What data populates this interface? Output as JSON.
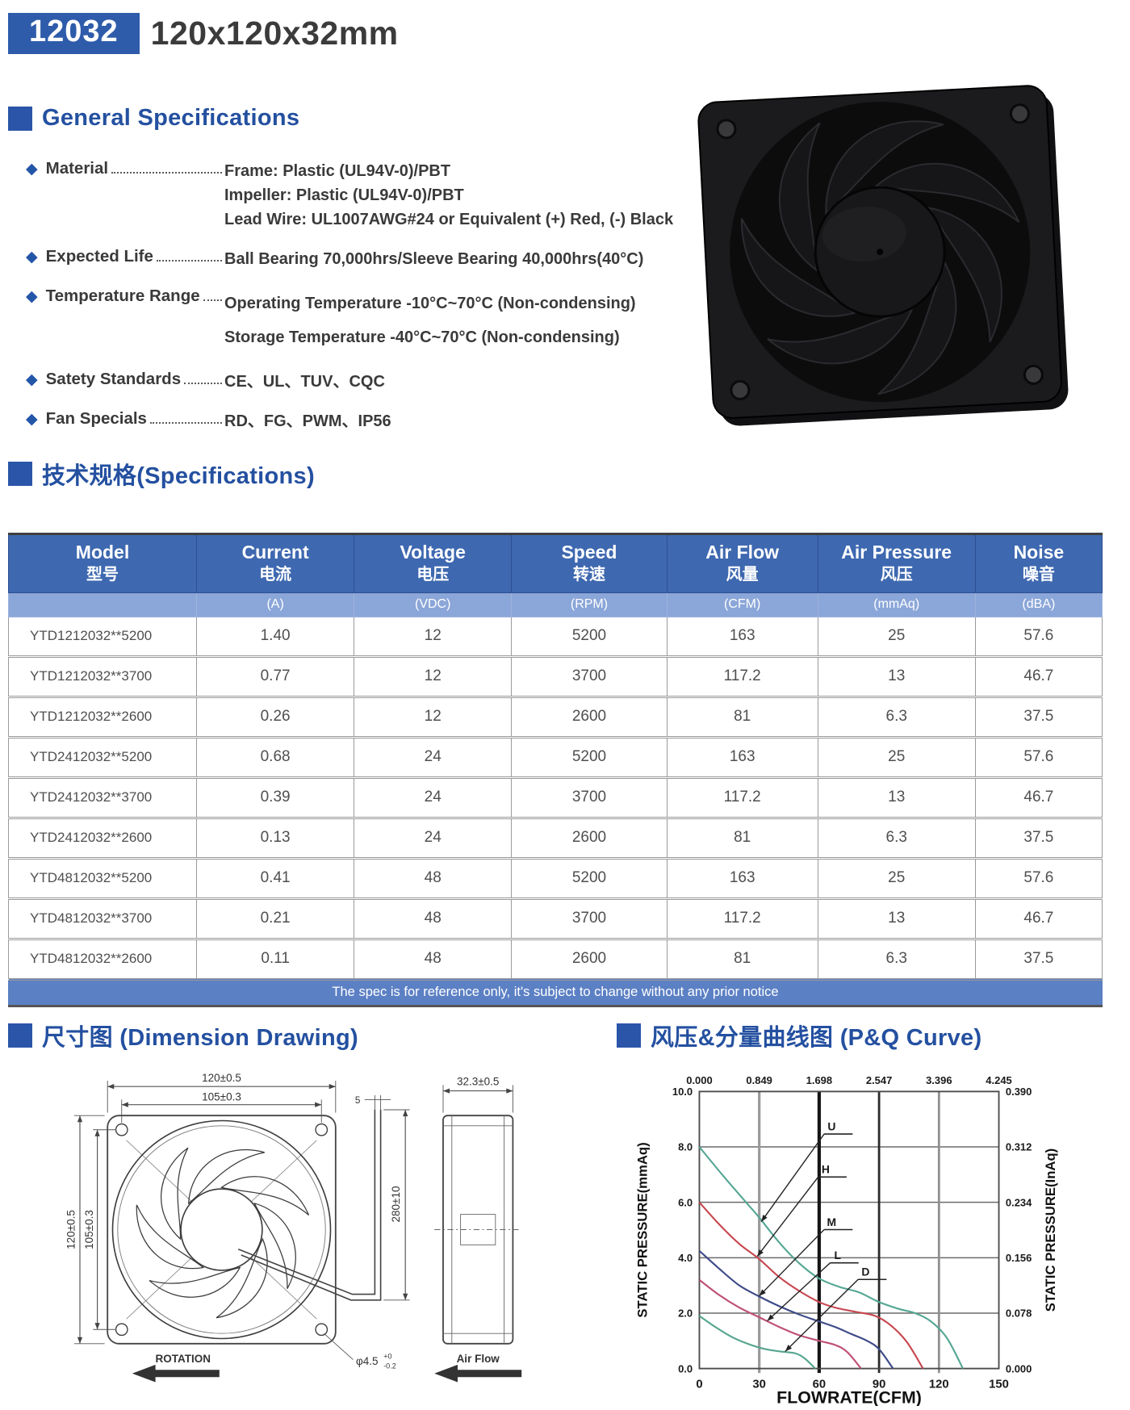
{
  "header": {
    "model_code": "12032",
    "size_label": "120x120x32mm"
  },
  "general": {
    "title": "General Specifications",
    "items": [
      {
        "label": "Material",
        "values": [
          "Frame: Plastic (UL94V-0)/PBT",
          "Impeller: Plastic (UL94V-0)/PBT",
          "Lead Wire: UL1007AWG#24 or Equivalent (+) Red, (-) Black"
        ]
      },
      {
        "label": "Expected Life",
        "values": [
          "Ball Bearing 70,000hrs/Sleeve Bearing 40,000hrs(40°C)"
        ]
      },
      {
        "label": "Temperature Range",
        "values": [
          "Operating Temperature -10°C~70°C (Non-condensing)",
          "Storage Temperature -40°C~70°C (Non-condensing)"
        ],
        "wide": true
      },
      {
        "label": "Satety Standards",
        "values": [
          "CE、UL、TUV、CQC"
        ]
      },
      {
        "label": "Fan Specials",
        "values": [
          "RD、FG、PWM、IP56"
        ]
      }
    ]
  },
  "specs": {
    "title": "技术规格(Specifications)",
    "columns": [
      {
        "en": "Model",
        "zh": "型号",
        "unit": ""
      },
      {
        "en": "Current",
        "zh": "电流",
        "unit": "(A)"
      },
      {
        "en": "Voltage",
        "zh": "电压",
        "unit": "(VDC)"
      },
      {
        "en": "Speed",
        "zh": "转速",
        "unit": "(RPM)"
      },
      {
        "en": "Air Flow",
        "zh": "风量",
        "unit": "(CFM)"
      },
      {
        "en": "Air Pressure",
        "zh": "风压",
        "unit": "(mmAq)"
      },
      {
        "en": "Noise",
        "zh": "噪音",
        "unit": "(dBA)"
      }
    ],
    "rows": [
      [
        "YTD1212032**5200",
        "1.40",
        "12",
        "5200",
        "163",
        "25",
        "57.6"
      ],
      [
        "YTD1212032**3700",
        "0.77",
        "12",
        "3700",
        "117.2",
        "13",
        "46.7"
      ],
      [
        "YTD1212032**2600",
        "0.26",
        "12",
        "2600",
        "81",
        "6.3",
        "37.5"
      ],
      [
        "YTD2412032**5200",
        "0.68",
        "24",
        "5200",
        "163",
        "25",
        "57.6"
      ],
      [
        "YTD2412032**3700",
        "0.39",
        "24",
        "3700",
        "117.2",
        "13",
        "46.7"
      ],
      [
        "YTD2412032**2600",
        "0.13",
        "24",
        "2600",
        "81",
        "6.3",
        "37.5"
      ],
      [
        "YTD4812032**5200",
        "0.41",
        "48",
        "5200",
        "163",
        "25",
        "57.6"
      ],
      [
        "YTD4812032**3700",
        "0.21",
        "48",
        "3700",
        "117.2",
        "13",
        "46.7"
      ],
      [
        "YTD4812032**2600",
        "0.11",
        "48",
        "2600",
        "81",
        "6.3",
        "37.5"
      ]
    ],
    "footnote": "The spec is for reference only, it's subject to change without any prior notice"
  },
  "dimension": {
    "title": "尺寸图 (Dimension Drawing)",
    "labels": {
      "width_outer": "120±0.5",
      "hole_pitch_h": "105±0.3",
      "height_outer": "120±0.5",
      "hole_pitch_v": "105±0.3",
      "depth": "32.3±0.5",
      "wire_offset": "5",
      "wire_length": "280±10",
      "hole_dia": "φ4.5",
      "hole_tol_plus": "+0",
      "hole_tol_minus": "-0.2",
      "rotation": "ROTATION",
      "airflow": "Air Flow"
    }
  },
  "pq": {
    "title": "风压&分量曲线图 (P&Q Curve)"
  },
  "chart_data": {
    "type": "line",
    "title": "P&Q Curve",
    "xlabel": "FLOWRATE(CFM)",
    "ylabel_left": "STATIC PRESSURE(mmAq)",
    "ylabel_right": "STATIC PRESSURE(InAq)",
    "xlim": [
      0,
      150
    ],
    "ylim": [
      0,
      10
    ],
    "x_ticks": [
      0,
      30,
      60,
      90,
      120,
      150
    ],
    "top_ticks": [
      "0.000",
      "0.849",
      "1.698",
      "2.547",
      "3.396",
      "4.245"
    ],
    "left_ticks": [
      "10.0",
      "8.0",
      "6.0",
      "4.0",
      "2.0",
      "0.0"
    ],
    "left_tick_values": [
      10,
      8,
      6,
      4,
      2,
      0
    ],
    "right_ticks": [
      "0.390",
      "0.312",
      "0.234",
      "0.156",
      "0.078",
      "0.000"
    ],
    "grid": true,
    "legend_position": "inline-annotations",
    "series": [
      {
        "name": "U",
        "color": "#55a794",
        "points": [
          [
            0,
            8.0
          ],
          [
            12,
            6.95
          ],
          [
            24,
            5.95
          ],
          [
            30,
            5.45
          ],
          [
            40,
            4.55
          ],
          [
            50,
            3.8
          ],
          [
            60,
            3.25
          ],
          [
            70,
            2.95
          ],
          [
            80,
            2.75
          ],
          [
            90,
            2.4
          ],
          [
            100,
            2.15
          ],
          [
            108,
            2.0
          ],
          [
            116,
            1.7
          ],
          [
            124,
            1.1
          ],
          [
            132,
            0
          ]
        ],
        "label_at": [
          64,
          8.6
        ],
        "arrow_to": [
          31,
          5.3
        ]
      },
      {
        "name": "H",
        "color": "#c8474f",
        "points": [
          [
            0,
            6.0
          ],
          [
            10,
            5.2
          ],
          [
            20,
            4.5
          ],
          [
            30,
            3.95
          ],
          [
            40,
            3.3
          ],
          [
            50,
            2.8
          ],
          [
            60,
            2.4
          ],
          [
            68,
            2.2
          ],
          [
            78,
            2.05
          ],
          [
            88,
            1.9
          ],
          [
            96,
            1.55
          ],
          [
            104,
            0.95
          ],
          [
            112,
            0
          ]
        ],
        "label_at": [
          61,
          7.05
        ],
        "arrow_to": [
          29,
          4.05
        ]
      },
      {
        "name": "M",
        "color": "#3d4a88",
        "points": [
          [
            0,
            4.25
          ],
          [
            10,
            3.6
          ],
          [
            20,
            3.0
          ],
          [
            30,
            2.6
          ],
          [
            40,
            2.25
          ],
          [
            50,
            1.95
          ],
          [
            60,
            1.7
          ],
          [
            68,
            1.5
          ],
          [
            76,
            1.25
          ],
          [
            84,
            1.0
          ],
          [
            90,
            0.7
          ],
          [
            97,
            0
          ]
        ],
        "label_at": [
          64,
          5.15
        ],
        "arrow_to": [
          30,
          2.62
        ]
      },
      {
        "name": "L",
        "color": "#bf4f78",
        "points": [
          [
            0,
            3.2
          ],
          [
            10,
            2.65
          ],
          [
            20,
            2.2
          ],
          [
            30,
            1.85
          ],
          [
            40,
            1.5
          ],
          [
            50,
            1.2
          ],
          [
            60,
            1.0
          ],
          [
            68,
            0.85
          ],
          [
            74,
            0.6
          ],
          [
            81,
            0
          ]
        ],
        "label_at": [
          67,
          3.95
        ],
        "arrow_to": [
          34,
          1.72
        ]
      },
      {
        "name": "D",
        "color": "#56a58f",
        "points": [
          [
            0,
            1.9
          ],
          [
            8,
            1.5
          ],
          [
            16,
            1.15
          ],
          [
            24,
            0.9
          ],
          [
            32,
            0.72
          ],
          [
            40,
            0.62
          ],
          [
            48,
            0.55
          ],
          [
            53,
            0.35
          ],
          [
            58,
            0
          ]
        ],
        "label_at": [
          81,
          3.35
        ],
        "arrow_to": [
          43,
          0.62
        ]
      }
    ]
  }
}
